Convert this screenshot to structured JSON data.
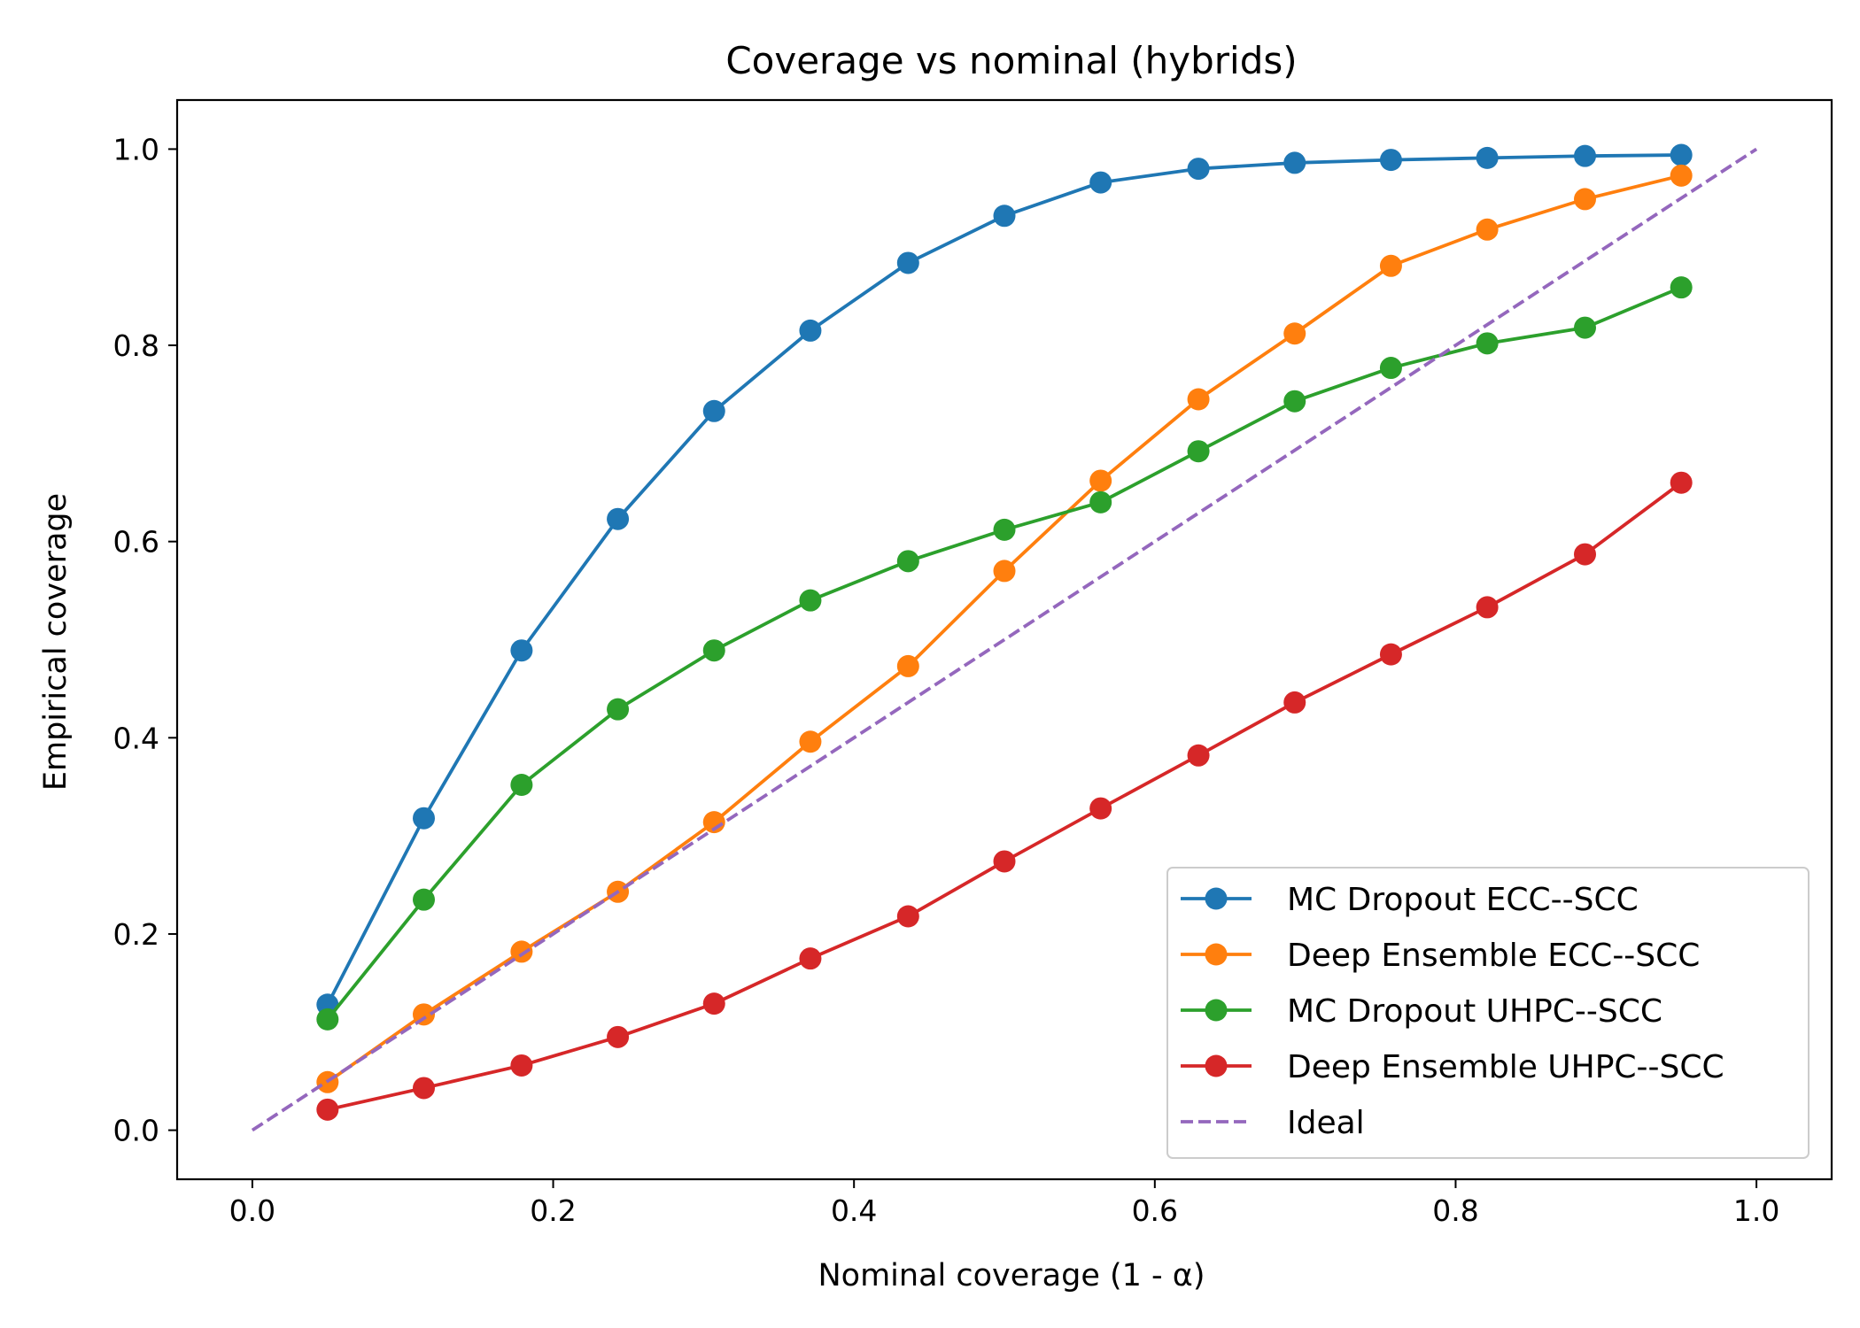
{
  "chart_data": {
    "type": "line",
    "title": "Coverage vs nominal (hybrids)",
    "xlabel": "Nominal coverage (1 - α)",
    "ylabel": "Empirical coverage",
    "xlim": [
      -0.05,
      1.05
    ],
    "ylim": [
      -0.05,
      1.05
    ],
    "xticks": [
      0.0,
      0.2,
      0.4,
      0.6,
      0.8,
      1.0
    ],
    "yticks": [
      0.0,
      0.2,
      0.4,
      0.6,
      0.8,
      1.0
    ],
    "xtick_labels": [
      "0.0",
      "0.2",
      "0.4",
      "0.6",
      "0.8",
      "1.0"
    ],
    "ytick_labels": [
      "0.0",
      "0.2",
      "0.4",
      "0.6",
      "0.8",
      "1.0"
    ],
    "grid": false,
    "legend_position": "lower-right",
    "x": [
      0.05,
      0.114,
      0.179,
      0.243,
      0.307,
      0.371,
      0.436,
      0.5,
      0.564,
      0.629,
      0.693,
      0.757,
      0.821,
      0.886,
      0.95
    ],
    "series": [
      {
        "name": "MC Dropout ECC--SCC",
        "color": "#1f77b4",
        "style": "solid-marker",
        "values": [
          0.128,
          0.318,
          0.489,
          0.623,
          0.733,
          0.815,
          0.884,
          0.932,
          0.966,
          0.98,
          0.986,
          0.989,
          0.991,
          0.993,
          0.994
        ]
      },
      {
        "name": "Deep Ensemble ECC--SCC",
        "color": "#ff7f0e",
        "style": "solid-marker",
        "values": [
          0.049,
          0.118,
          0.182,
          0.243,
          0.314,
          0.396,
          0.473,
          0.57,
          0.662,
          0.745,
          0.812,
          0.881,
          0.918,
          0.949,
          0.973
        ]
      },
      {
        "name": "MC Dropout UHPC--SCC",
        "color": "#2ca02c",
        "style": "solid-marker",
        "values": [
          0.113,
          0.235,
          0.352,
          0.429,
          0.489,
          0.54,
          0.58,
          0.612,
          0.64,
          0.692,
          0.743,
          0.777,
          0.802,
          0.818,
          0.859
        ]
      },
      {
        "name": "Deep Ensemble UHPC--SCC",
        "color": "#d62728",
        "style": "solid-marker",
        "values": [
          0.021,
          0.043,
          0.066,
          0.095,
          0.129,
          0.175,
          0.218,
          0.274,
          0.328,
          0.382,
          0.436,
          0.485,
          0.533,
          0.587,
          0.66
        ]
      },
      {
        "name": "Ideal",
        "color": "#9467bd",
        "style": "dashed",
        "x": [
          0.0,
          1.0
        ],
        "values": [
          0.0,
          1.0
        ]
      }
    ]
  }
}
